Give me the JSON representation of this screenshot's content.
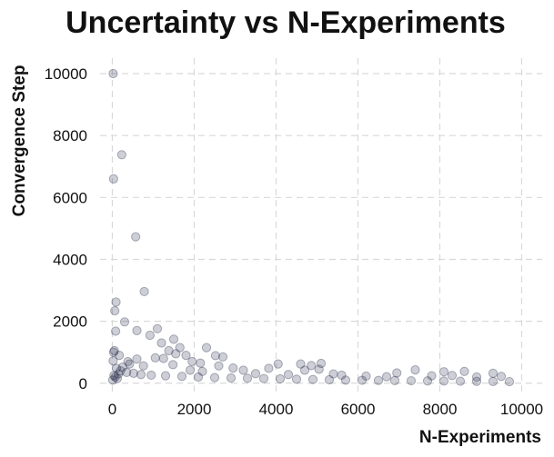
{
  "chart_data": {
    "type": "scatter",
    "title": "Uncertainty vs N-Experiments",
    "xlabel": "N-Experiments",
    "ylabel": "Convergence Step",
    "xlim": [
      -300,
      10500
    ],
    "ylim": [
      -300,
      10500
    ],
    "xticks": [
      0,
      2000,
      4000,
      6000,
      8000,
      10000
    ],
    "yticks": [
      0,
      2000,
      4000,
      6000,
      8000,
      10000
    ],
    "grid": true,
    "color": "#1f2545",
    "series": [
      {
        "name": "",
        "points": [
          [
            20,
            10000
          ],
          [
            30,
            6600
          ],
          [
            230,
            7380
          ],
          [
            570,
            4730
          ],
          [
            780,
            2960
          ],
          [
            90,
            2620
          ],
          [
            60,
            2340
          ],
          [
            300,
            1980
          ],
          [
            80,
            1680
          ],
          [
            600,
            1700
          ],
          [
            1100,
            1760
          ],
          [
            920,
            1550
          ],
          [
            1500,
            1420
          ],
          [
            1200,
            1300
          ],
          [
            1650,
            1150
          ],
          [
            2300,
            1150
          ],
          [
            1380,
            1050
          ],
          [
            50,
            1050
          ],
          [
            30,
            1000
          ],
          [
            170,
            900
          ],
          [
            1550,
            950
          ],
          [
            1800,
            900
          ],
          [
            2520,
            890
          ],
          [
            2700,
            850
          ],
          [
            1050,
            820
          ],
          [
            1250,
            800
          ],
          [
            600,
            780
          ],
          [
            380,
            700
          ],
          [
            420,
            620
          ],
          [
            20,
            720
          ],
          [
            1950,
            700
          ],
          [
            2150,
            650
          ],
          [
            4050,
            620
          ],
          [
            4600,
            620
          ],
          [
            5100,
            640
          ],
          [
            4860,
            570
          ],
          [
            2600,
            560
          ],
          [
            2950,
            490
          ],
          [
            3200,
            420
          ],
          [
            3820,
            480
          ],
          [
            4700,
            420
          ],
          [
            5050,
            450
          ],
          [
            7400,
            430
          ],
          [
            9300,
            320
          ],
          [
            8600,
            380
          ],
          [
            8100,
            370
          ],
          [
            6950,
            330
          ],
          [
            760,
            560
          ],
          [
            1480,
            600
          ],
          [
            250,
            520
          ],
          [
            100,
            480
          ],
          [
            200,
            400
          ],
          [
            350,
            350
          ],
          [
            520,
            320
          ],
          [
            700,
            280
          ],
          [
            950,
            260
          ],
          [
            1300,
            240
          ],
          [
            1700,
            220
          ],
          [
            2100,
            200
          ],
          [
            2500,
            180
          ],
          [
            2900,
            170
          ],
          [
            3300,
            160
          ],
          [
            3700,
            150
          ],
          [
            4100,
            140
          ],
          [
            4500,
            130
          ],
          [
            4900,
            120
          ],
          [
            5300,
            110
          ],
          [
            5700,
            100
          ],
          [
            6100,
            95
          ],
          [
            6500,
            90
          ],
          [
            6900,
            85
          ],
          [
            7300,
            80
          ],
          [
            7700,
            75
          ],
          [
            8100,
            70
          ],
          [
            8500,
            65
          ],
          [
            8900,
            60
          ],
          [
            9300,
            55
          ],
          [
            9700,
            50
          ],
          [
            5600,
            260
          ],
          [
            6200,
            230
          ],
          [
            6700,
            210
          ],
          [
            7800,
            240
          ],
          [
            8300,
            250
          ],
          [
            8900,
            200
          ],
          [
            9500,
            220
          ],
          [
            3500,
            310
          ],
          [
            4300,
            280
          ],
          [
            5400,
            300
          ],
          [
            2200,
            380
          ],
          [
            1900,
            420
          ],
          [
            150,
            300
          ],
          [
            40,
            250
          ],
          [
            70,
            200
          ],
          [
            120,
            150
          ],
          [
            10,
            100
          ]
        ]
      }
    ]
  }
}
